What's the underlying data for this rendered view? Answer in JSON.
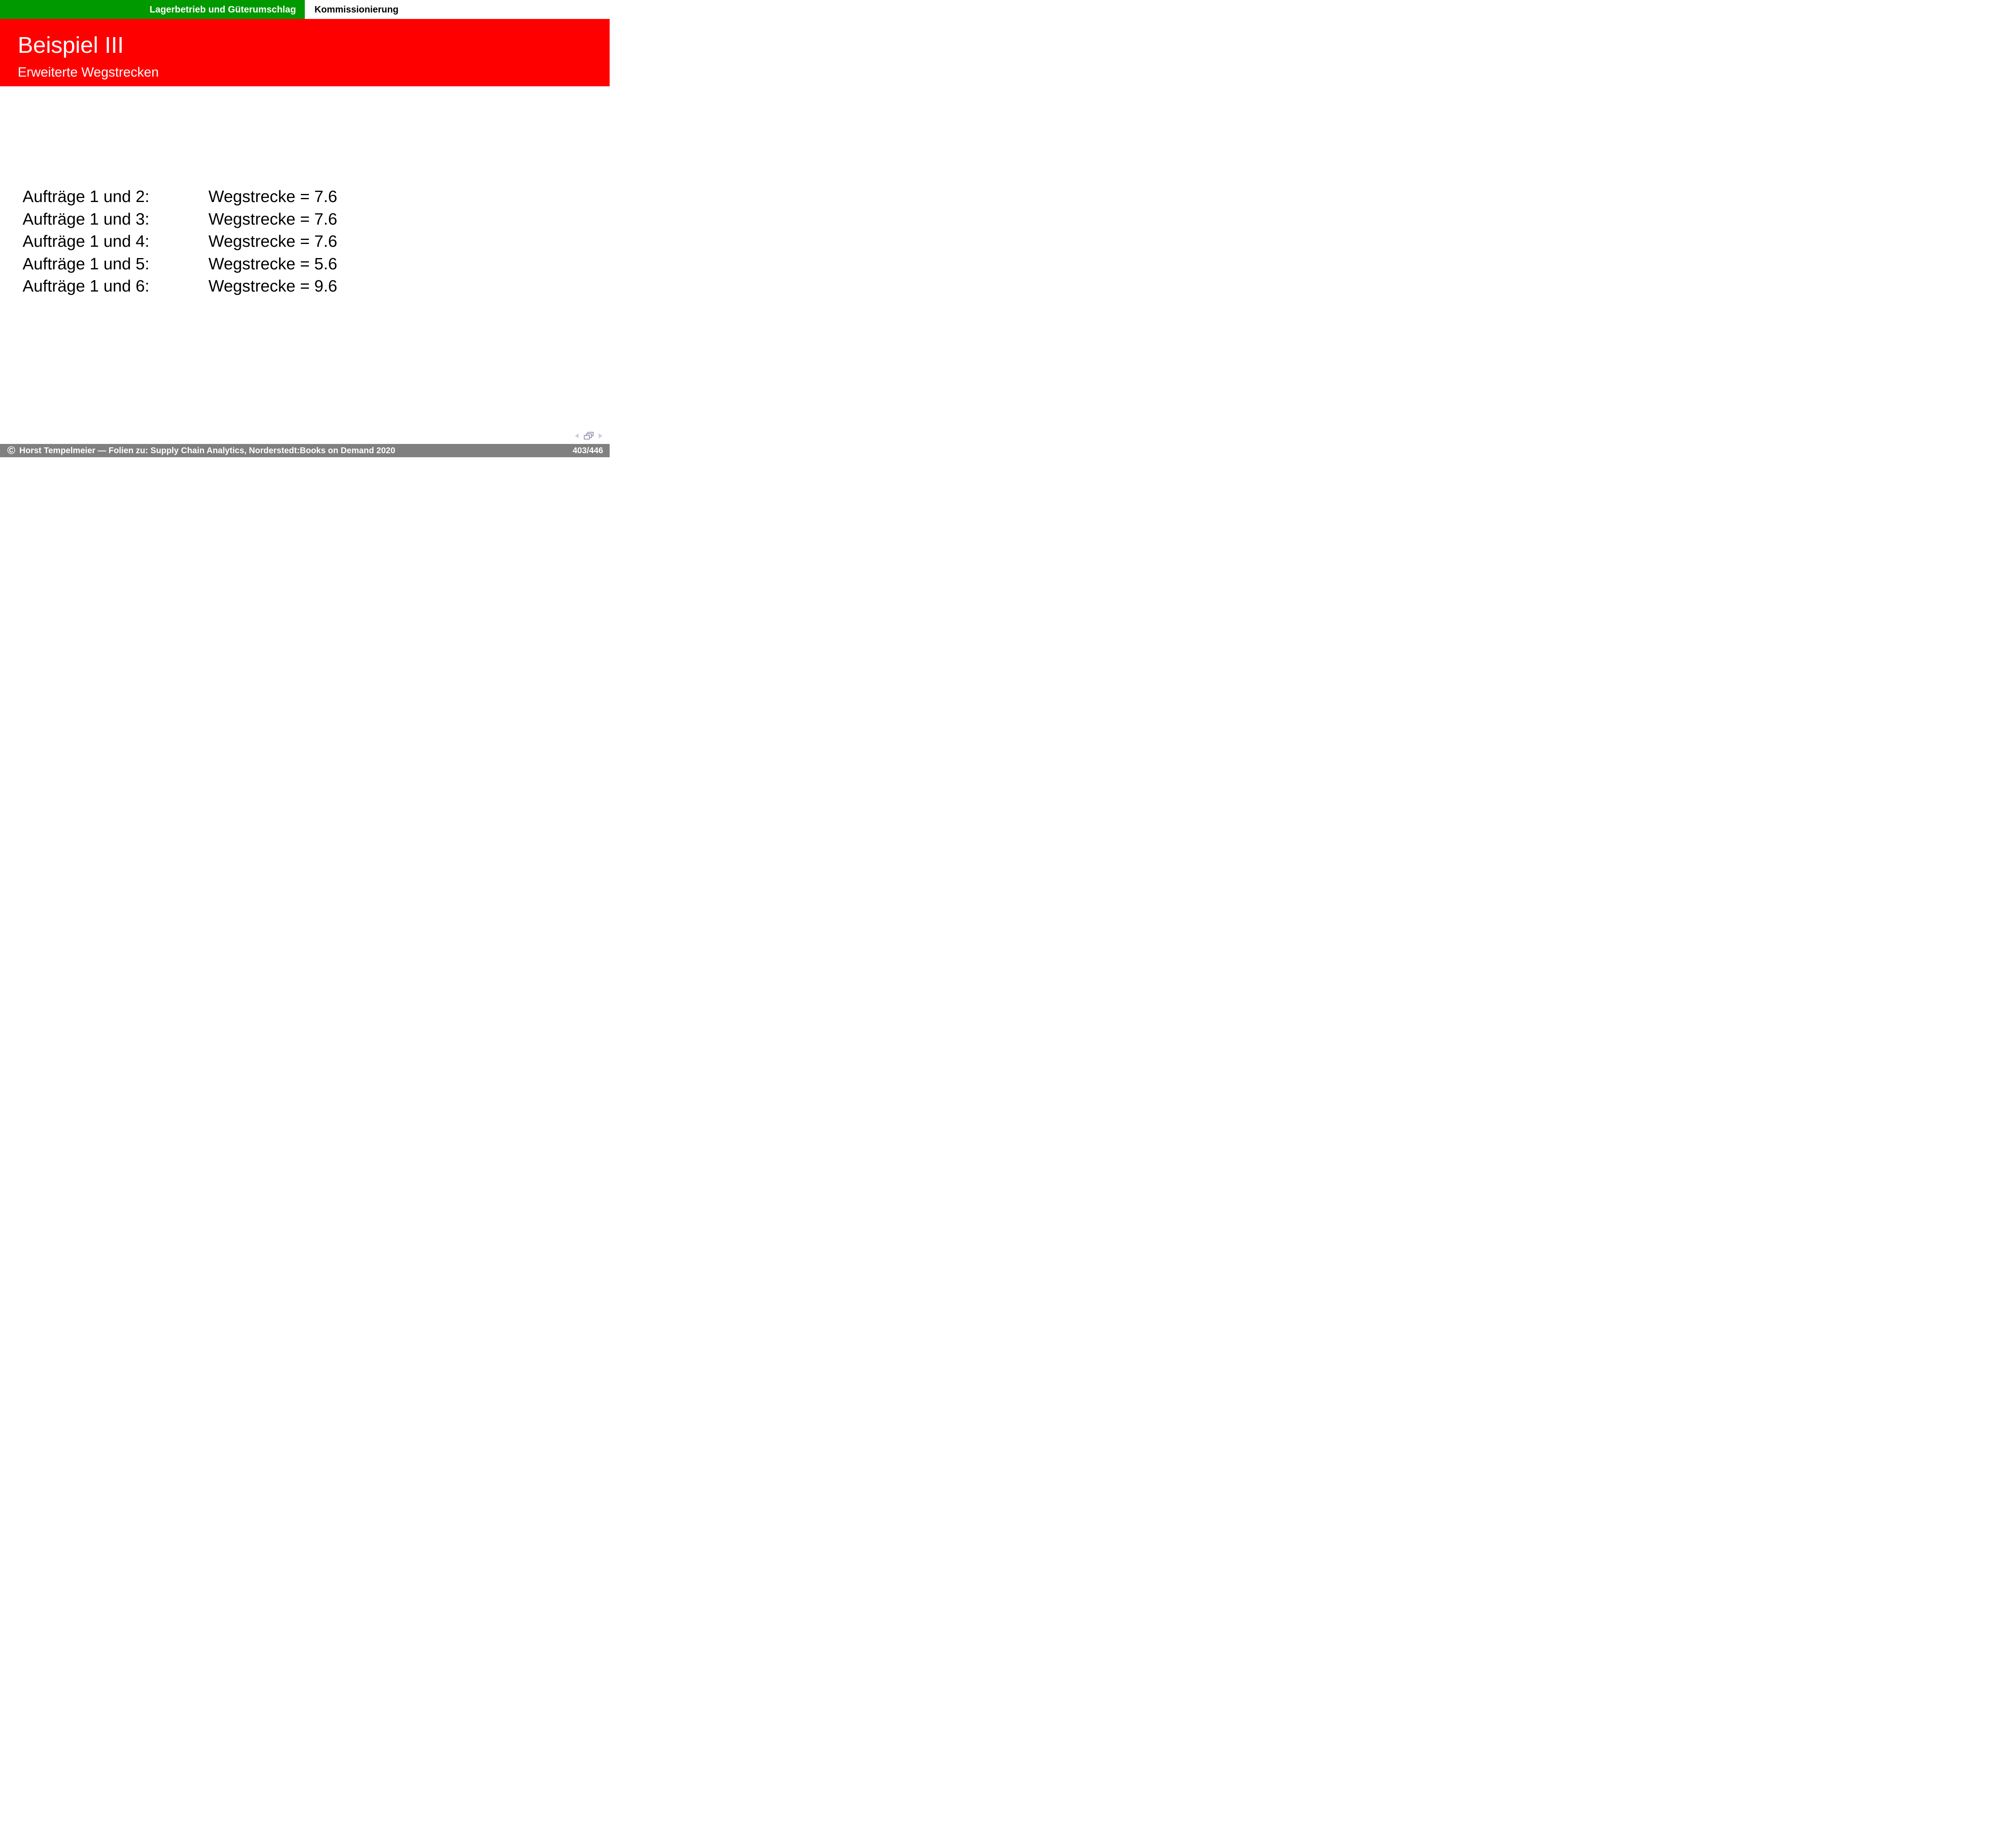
{
  "topbar": {
    "left_label": "Lagerbetrieb und Güterumschlag",
    "right_label": "Kommissionierung"
  },
  "header": {
    "title": "Beispiel III",
    "subtitle": "Erweiterte Wegstrecken"
  },
  "content": {
    "rows": [
      {
        "label": "Aufträge 1 und 2:",
        "distance": "Wegstrecke = 7.6"
      },
      {
        "label": "Aufträge 1 und 3:",
        "distance": "Wegstrecke = 7.6"
      },
      {
        "label": "Aufträge 1 und 4:",
        "distance": "Wegstrecke = 7.6"
      },
      {
        "label": "Aufträge 1 und 5:",
        "distance": "Wegstrecke = 5.6"
      },
      {
        "label": "Aufträge 1 und 6:",
        "distance": "Wegstrecke = 9.6"
      }
    ]
  },
  "navigation": {
    "prev_icon": "left-arrow",
    "frames_icon": "stacked-frames",
    "next_icon": "right-arrow"
  },
  "footer": {
    "copyright_symbol": "©",
    "text": "Horst Tempelmeier — Folien zu: Supply Chain Analytics, Norderstedt:Books on Demand 2020",
    "page": "403/446"
  },
  "colors": {
    "topbar_green": "#009900",
    "header_red": "#ff0000",
    "footer_gray": "#808080",
    "nav_arrow": "#cbcbdb",
    "nav_frames": "#9595b5"
  }
}
